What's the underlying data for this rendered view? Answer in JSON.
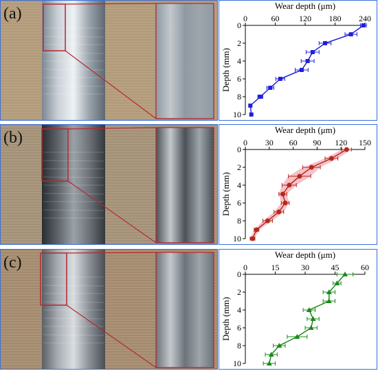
{
  "panels": [
    {
      "label": "(a)",
      "accent": "#1f1fdd",
      "band": "none"
    },
    {
      "label": "(b)",
      "accent": "#b5281c",
      "band": "#f2a6b0"
    },
    {
      "label": "(c)",
      "accent": "#1a8a1a",
      "band": "none"
    }
  ],
  "chart_data": [
    {
      "type": "line",
      "xlabel": "Wear depth (μm)",
      "ylabel": "Depth (mm)",
      "xlim": [
        0,
        240
      ],
      "ylim": [
        10,
        0
      ],
      "xticks": [
        0,
        60,
        120,
        180,
        240
      ],
      "yticks": [
        0,
        2,
        4,
        6,
        8,
        10
      ],
      "marker": "square",
      "color": "#1f1fdd",
      "x": [
        237,
        212,
        160,
        135,
        125,
        113,
        70,
        50,
        30,
        10,
        12
      ],
      "y": [
        0,
        1,
        2,
        3,
        4,
        5,
        6,
        7,
        8,
        9,
        10
      ],
      "xerr": [
        6,
        12,
        12,
        13,
        13,
        13,
        9,
        7,
        5,
        3,
        3
      ]
    },
    {
      "type": "line",
      "xlabel": "Wear depth (μm)",
      "ylabel": "Depth (mm)",
      "xlim": [
        0,
        150
      ],
      "ylim": [
        10,
        0
      ],
      "xticks": [
        0,
        30,
        60,
        90,
        120,
        150
      ],
      "yticks": [
        0,
        2,
        4,
        6,
        8,
        10
      ],
      "marker": "circle",
      "color": "#b5281c",
      "x": [
        127,
        108,
        83,
        68,
        55,
        47,
        50,
        42,
        28,
        14,
        9
      ],
      "y": [
        0,
        1,
        2,
        3,
        4,
        5,
        6,
        7,
        8,
        9,
        10
      ],
      "xerr": [
        6,
        8,
        11,
        14,
        9,
        5,
        5,
        6,
        6,
        3,
        3
      ]
    },
    {
      "type": "line",
      "xlabel": "Wear depth (μm)",
      "ylabel": "Depth (mm)",
      "xlim": [
        0,
        60
      ],
      "ylim": [
        10,
        0
      ],
      "xticks": [
        0,
        15,
        30,
        45,
        60
      ],
      "yticks": [
        0,
        2,
        4,
        6,
        8,
        10
      ],
      "marker": "triangle",
      "color": "#1a8a1a",
      "x": [
        50,
        46,
        42,
        42,
        32,
        34,
        33,
        26,
        17,
        13,
        12
      ],
      "y": [
        0,
        1,
        2,
        3,
        4,
        5,
        6,
        7,
        8,
        9,
        10
      ],
      "xerr": [
        4,
        2,
        3,
        3,
        3,
        3,
        3,
        5,
        3,
        3,
        3
      ]
    }
  ]
}
